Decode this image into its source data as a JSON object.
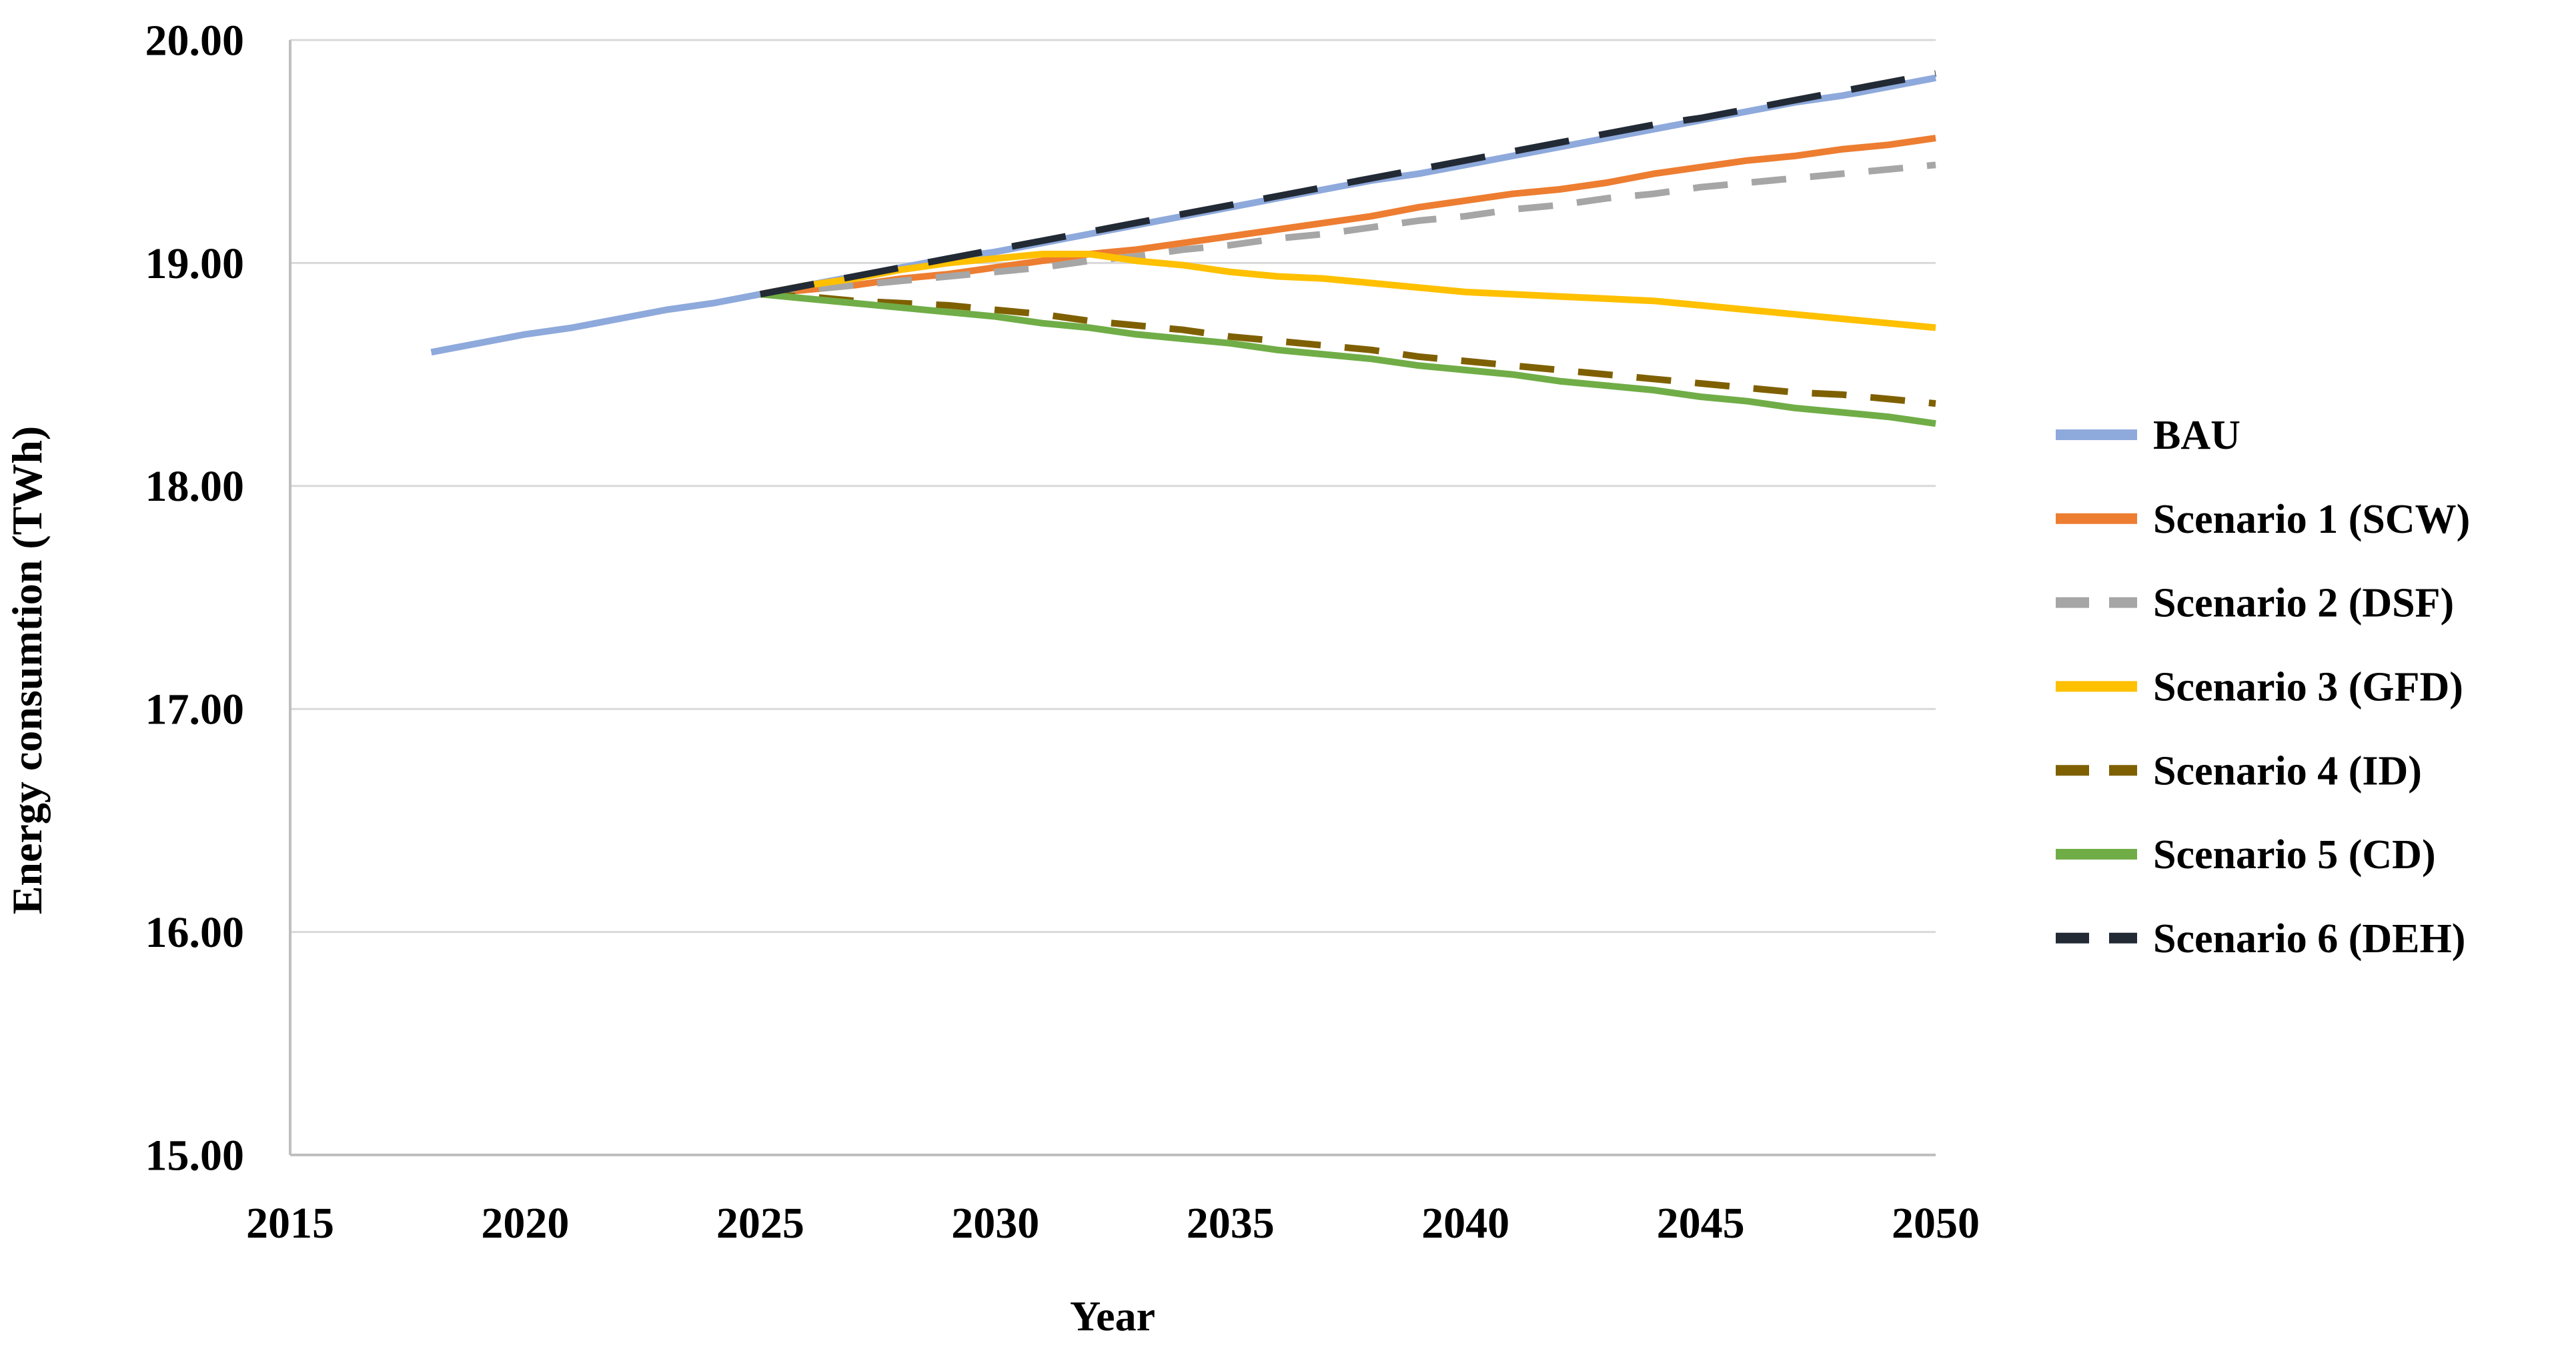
{
  "chart_data": {
    "type": "line",
    "title": "",
    "xlabel": "Year",
    "ylabel": "Energy consumtion (TWh)",
    "xlim": [
      2015,
      2050
    ],
    "ylim": [
      15.0,
      20.0
    ],
    "x_tick_labels": [
      "2015",
      "2020",
      "2025",
      "2030",
      "2035",
      "2040",
      "2045",
      "2050"
    ],
    "x_tick_values": [
      2015,
      2020,
      2025,
      2030,
      2035,
      2040,
      2045,
      2050
    ],
    "y_tick_labels": [
      "15.00",
      "16.00",
      "17.00",
      "18.00",
      "19.00",
      "20.00"
    ],
    "y_tick_values": [
      15.0,
      16.0,
      17.0,
      18.0,
      19.0,
      20.0
    ],
    "grid": "horizontal-only",
    "legend_position": "right",
    "colors": {
      "axis_line": "#BFBFBF",
      "grid_line": "#D9D9D9",
      "text": "#000000",
      "background": "#FFFFFF"
    },
    "series": [
      {
        "name": "BAU",
        "color": "#8EA9DB",
        "line_style": "solid",
        "years": [
          2018,
          2019,
          2020,
          2021,
          2022,
          2023,
          2024,
          2025,
          2026,
          2027,
          2028,
          2029,
          2030,
          2031,
          2032,
          2033,
          2034,
          2035,
          2036,
          2037,
          2038,
          2039,
          2040,
          2041,
          2042,
          2043,
          2044,
          2045,
          2046,
          2047,
          2048,
          2049,
          2050
        ],
        "values": [
          18.6,
          18.64,
          18.68,
          18.71,
          18.75,
          18.79,
          18.82,
          18.86,
          18.9,
          18.94,
          18.98,
          19.02,
          19.05,
          19.09,
          19.13,
          19.17,
          19.21,
          19.25,
          19.29,
          19.33,
          19.37,
          19.4,
          19.44,
          19.48,
          19.52,
          19.56,
          19.6,
          19.64,
          19.68,
          19.72,
          19.75,
          19.79,
          19.83
        ]
      },
      {
        "name": "Scenario 1 (SCW)",
        "color": "#ED7D31",
        "line_style": "solid",
        "years": [
          2025,
          2026,
          2027,
          2028,
          2029,
          2030,
          2031,
          2032,
          2033,
          2034,
          2035,
          2036,
          2037,
          2038,
          2039,
          2040,
          2041,
          2042,
          2043,
          2044,
          2045,
          2046,
          2047,
          2048,
          2049,
          2050
        ],
        "values": [
          18.86,
          18.88,
          18.9,
          18.93,
          18.95,
          18.98,
          19.01,
          19.04,
          19.06,
          19.09,
          19.12,
          19.15,
          19.18,
          19.21,
          19.25,
          19.28,
          19.31,
          19.33,
          19.36,
          19.4,
          19.43,
          19.46,
          19.48,
          19.51,
          19.53,
          19.56
        ]
      },
      {
        "name": "Scenario 2 (DSF)",
        "color": "#A6A6A6",
        "line_style": "dashed",
        "years": [
          2025,
          2026,
          2027,
          2028,
          2029,
          2030,
          2031,
          2032,
          2033,
          2034,
          2035,
          2036,
          2037,
          2038,
          2039,
          2040,
          2041,
          2042,
          2043,
          2044,
          2045,
          2046,
          2047,
          2048,
          2049,
          2050
        ],
        "values": [
          18.86,
          18.88,
          18.9,
          18.92,
          18.94,
          18.96,
          18.98,
          19.01,
          19.03,
          19.06,
          19.08,
          19.11,
          19.13,
          19.16,
          19.19,
          19.21,
          19.24,
          19.26,
          19.29,
          19.31,
          19.34,
          19.36,
          19.38,
          19.4,
          19.42,
          19.44
        ]
      },
      {
        "name": "Scenario 3 (GFD)",
        "color": "#FFC000",
        "line_style": "solid",
        "years": [
          2025,
          2026,
          2027,
          2028,
          2029,
          2030,
          2031,
          2032,
          2033,
          2034,
          2035,
          2036,
          2037,
          2038,
          2039,
          2040,
          2041,
          2042,
          2043,
          2044,
          2045,
          2046,
          2047,
          2048,
          2049,
          2050
        ],
        "values": [
          18.86,
          18.9,
          18.93,
          18.97,
          19.0,
          19.02,
          19.04,
          19.04,
          19.01,
          18.99,
          18.96,
          18.94,
          18.93,
          18.91,
          18.89,
          18.87,
          18.86,
          18.85,
          18.84,
          18.83,
          18.81,
          18.79,
          18.77,
          18.75,
          18.73,
          18.71
        ]
      },
      {
        "name": "Scenario 4 (ID)",
        "color": "#7F6000",
        "line_style": "dashed",
        "years": [
          2025,
          2026,
          2027,
          2028,
          2029,
          2030,
          2031,
          2032,
          2033,
          2034,
          2035,
          2036,
          2037,
          2038,
          2039,
          2040,
          2041,
          2042,
          2043,
          2044,
          2045,
          2046,
          2047,
          2048,
          2049,
          2050
        ],
        "values": [
          18.86,
          18.85,
          18.83,
          18.82,
          18.81,
          18.79,
          18.77,
          18.74,
          18.72,
          18.7,
          18.67,
          18.65,
          18.63,
          18.61,
          18.58,
          18.56,
          18.54,
          18.52,
          18.5,
          18.48,
          18.46,
          18.44,
          18.42,
          18.41,
          18.39,
          18.37
        ]
      },
      {
        "name": "Scenario 5 (CD)",
        "color": "#70AD47",
        "line_style": "solid",
        "years": [
          2025,
          2026,
          2027,
          2028,
          2029,
          2030,
          2031,
          2032,
          2033,
          2034,
          2035,
          2036,
          2037,
          2038,
          2039,
          2040,
          2041,
          2042,
          2043,
          2044,
          2045,
          2046,
          2047,
          2048,
          2049,
          2050
        ],
        "values": [
          18.86,
          18.84,
          18.82,
          18.8,
          18.78,
          18.76,
          18.73,
          18.71,
          18.68,
          18.66,
          18.64,
          18.61,
          18.59,
          18.57,
          18.54,
          18.52,
          18.5,
          18.47,
          18.45,
          18.43,
          18.4,
          18.38,
          18.35,
          18.33,
          18.31,
          18.28
        ]
      },
      {
        "name": "Scenario 6 (DEH)",
        "color": "#222A35",
        "line_style": "long-dashed",
        "years": [
          2025,
          2026,
          2027,
          2028,
          2029,
          2030,
          2031,
          2032,
          2033,
          2034,
          2035,
          2036,
          2037,
          2038,
          2039,
          2040,
          2041,
          2042,
          2043,
          2044,
          2045,
          2046,
          2047,
          2048,
          2049,
          2050
        ],
        "values": [
          18.86,
          18.9,
          18.94,
          18.98,
          19.02,
          19.06,
          19.1,
          19.14,
          19.18,
          19.22,
          19.26,
          19.3,
          19.34,
          19.38,
          19.42,
          19.46,
          19.5,
          19.54,
          19.58,
          19.62,
          19.65,
          19.69,
          19.73,
          19.77,
          19.81,
          19.85
        ]
      }
    ],
    "legend_entries": [
      "BAU",
      "Scenario 1 (SCW)",
      "Scenario 2 (DSF)",
      "Scenario 3 (GFD)",
      "Scenario 4 (ID)",
      "Scenario 5 (CD)",
      "Scenario 6 (DEH)"
    ]
  }
}
